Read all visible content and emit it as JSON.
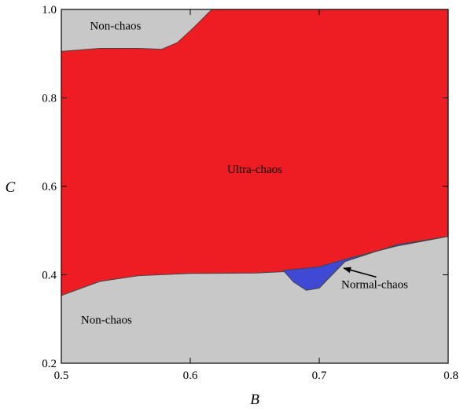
{
  "chart_data": {
    "type": "area",
    "title": "",
    "xlabel": "B",
    "ylabel": "C",
    "xlim": [
      0.5,
      0.8
    ],
    "ylim": [
      0.2,
      1.0
    ],
    "xticks": [
      "0.5",
      "0.6",
      "0.7",
      "0.8"
    ],
    "yticks": [
      "0.2",
      "0.4",
      "0.6",
      "0.8",
      "1.0"
    ],
    "grid": false,
    "colors": {
      "non_chaos": "#c8c8c8",
      "ultra_chaos": "#ee1d24",
      "normal_chaos": "#3f49d4"
    },
    "regions": [
      {
        "name": "Non-chaos",
        "role": "background"
      },
      {
        "name": "Ultra-chaos",
        "boundary": {
          "upper": [
            [
              0.5,
              0.905
            ],
            [
              0.53,
              0.912
            ],
            [
              0.56,
              0.912
            ],
            [
              0.578,
              0.91
            ],
            [
              0.59,
              0.925
            ],
            [
              0.603,
              0.96
            ],
            [
              0.615,
              0.995
            ],
            [
              0.617,
              1.0
            ],
            [
              0.8,
              1.0
            ]
          ],
          "lower": [
            [
              0.5,
              0.353
            ],
            [
              0.53,
              0.385
            ],
            [
              0.56,
              0.398
            ],
            [
              0.6,
              0.403
            ],
            [
              0.65,
              0.404
            ],
            [
              0.68,
              0.408
            ],
            [
              0.7,
              0.418
            ],
            [
              0.72,
              0.435
            ],
            [
              0.76,
              0.465
            ],
            [
              0.8,
              0.487
            ]
          ]
        }
      },
      {
        "name": "Normal-chaos",
        "polygon": [
          [
            0.672,
            0.41
          ],
          [
            0.7,
            0.418
          ],
          [
            0.72,
            0.435
          ],
          [
            0.76,
            0.465
          ],
          [
            0.8,
            0.487
          ],
          [
            0.76,
            0.468
          ],
          [
            0.72,
            0.43
          ],
          [
            0.7,
            0.37
          ],
          [
            0.69,
            0.365
          ],
          [
            0.68,
            0.384
          ],
          [
            0.672,
            0.41
          ]
        ]
      }
    ],
    "annotations": [
      {
        "text": "Non-chaos",
        "x": 0.542,
        "y": 0.955,
        "region": "Non-chaos"
      },
      {
        "text": "Ultra-chaos",
        "x": 0.65,
        "y": 0.63,
        "region": "Ultra-chaos"
      },
      {
        "text": "Normal-chaos",
        "x": 0.743,
        "y": 0.37,
        "arrow_to": [
          0.719,
          0.415
        ],
        "region": "Normal-chaos"
      },
      {
        "text": "Non-chaos",
        "x": 0.535,
        "y": 0.29,
        "region": "Non-chaos"
      }
    ]
  }
}
